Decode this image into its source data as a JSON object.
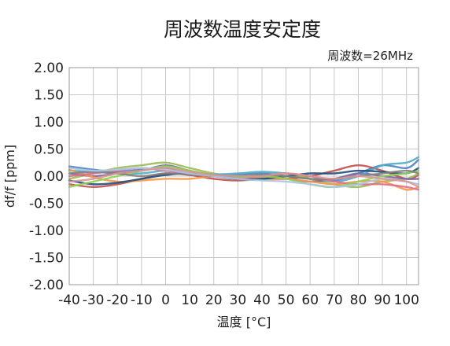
{
  "chart_data": {
    "type": "line",
    "title": "周波数温度安定度",
    "annotation": "周波数=26MHz",
    "xlabel": "温度 [°C]",
    "ylabel": "df/f [ppm]",
    "xlim": [
      -40,
      105
    ],
    "ylim": [
      -2.0,
      2.0
    ],
    "x_ticks": [
      -40,
      -30,
      -20,
      -10,
      0,
      10,
      20,
      30,
      40,
      50,
      60,
      70,
      80,
      90,
      100
    ],
    "x_tick_labels": [
      "-40",
      "-30",
      "-20",
      "-10",
      "0",
      "10",
      "20",
      "30",
      "40",
      "50",
      "60",
      "70",
      "80",
      "90",
      "100"
    ],
    "y_ticks": [
      2.0,
      1.5,
      1.0,
      0.5,
      0.0,
      -0.5,
      -1.0,
      -1.5,
      -2.0
    ],
    "y_tick_labels": [
      "2.00",
      "1.50",
      "1.00",
      "0.50",
      "0.00",
      "-0.50",
      "-1.00",
      "-1.50",
      "-2.00"
    ],
    "grid": true,
    "legend": "none",
    "x": [
      -40,
      -30,
      -20,
      -10,
      0,
      10,
      20,
      30,
      40,
      50,
      60,
      70,
      80,
      90,
      100,
      105
    ],
    "series": [
      {
        "color": "#4f81bd",
        "values": [
          0.18,
          0.12,
          0.08,
          0.12,
          0.15,
          0.05,
          0.0,
          0.03,
          0.05,
          0.0,
          -0.05,
          -0.08,
          0.05,
          0.2,
          0.15,
          0.3
        ]
      },
      {
        "color": "#c0504d",
        "values": [
          -0.15,
          -0.2,
          -0.15,
          -0.05,
          0.05,
          0.02,
          -0.05,
          -0.08,
          -0.05,
          -0.05,
          0.0,
          0.1,
          0.2,
          0.1,
          -0.05,
          0.02
        ]
      },
      {
        "color": "#9bbb59",
        "values": [
          -0.05,
          0.05,
          0.15,
          0.2,
          0.25,
          0.15,
          0.05,
          0.0,
          -0.02,
          0.05,
          -0.05,
          -0.15,
          -0.2,
          -0.1,
          -0.05,
          0.05
        ]
      },
      {
        "color": "#8064a2",
        "values": [
          0.05,
          0.0,
          0.05,
          0.1,
          0.2,
          0.1,
          0.02,
          -0.02,
          0.0,
          -0.05,
          -0.1,
          -0.05,
          0.05,
          0.0,
          -0.05,
          -0.05
        ]
      },
      {
        "color": "#4bacc6",
        "values": [
          0.1,
          0.08,
          0.05,
          0.05,
          0.1,
          0.05,
          0.03,
          0.05,
          0.08,
          0.05,
          0.0,
          -0.1,
          0.0,
          0.2,
          0.25,
          0.35
        ]
      },
      {
        "color": "#f79646",
        "values": [
          0.12,
          -0.02,
          -0.1,
          -0.08,
          -0.05,
          -0.05,
          0.0,
          0.0,
          -0.05,
          -0.05,
          -0.1,
          -0.15,
          -0.1,
          -0.1,
          -0.25,
          -0.2
        ]
      },
      {
        "color": "#1f4e79",
        "values": [
          -0.08,
          -0.15,
          -0.12,
          -0.05,
          0.02,
          0.05,
          0.0,
          -0.05,
          -0.05,
          0.0,
          0.05,
          0.05,
          0.1,
          0.08,
          0.05,
          0.15
        ]
      },
      {
        "color": "#e26b8a",
        "values": [
          0.0,
          0.05,
          0.1,
          0.15,
          0.1,
          0.05,
          0.0,
          -0.03,
          0.0,
          0.05,
          0.0,
          -0.1,
          -0.15,
          -0.15,
          -0.2,
          -0.25
        ]
      },
      {
        "color": "#92d050",
        "values": [
          -0.2,
          -0.1,
          0.0,
          0.1,
          0.18,
          0.1,
          0.02,
          -0.02,
          0.0,
          -0.05,
          -0.15,
          -0.2,
          -0.1,
          0.0,
          0.05,
          0.1
        ]
      },
      {
        "color": "#7f7f7f",
        "values": [
          0.05,
          0.08,
          0.05,
          0.0,
          0.05,
          0.03,
          0.0,
          0.0,
          0.02,
          0.0,
          -0.05,
          -0.05,
          0.0,
          0.05,
          0.1,
          0.05
        ]
      },
      {
        "color": "#a9c6e8",
        "values": [
          0.15,
          0.1,
          0.12,
          0.15,
          0.12,
          0.05,
          0.0,
          -0.05,
          -0.08,
          -0.1,
          -0.15,
          -0.2,
          -0.15,
          -0.05,
          -0.1,
          -0.15
        ]
      },
      {
        "color": "#d99694",
        "values": [
          -0.1,
          -0.05,
          0.05,
          0.1,
          0.15,
          0.08,
          0.02,
          0.0,
          0.0,
          0.05,
          0.0,
          -0.05,
          0.0,
          -0.05,
          -0.1,
          -0.2
        ]
      }
    ]
  }
}
